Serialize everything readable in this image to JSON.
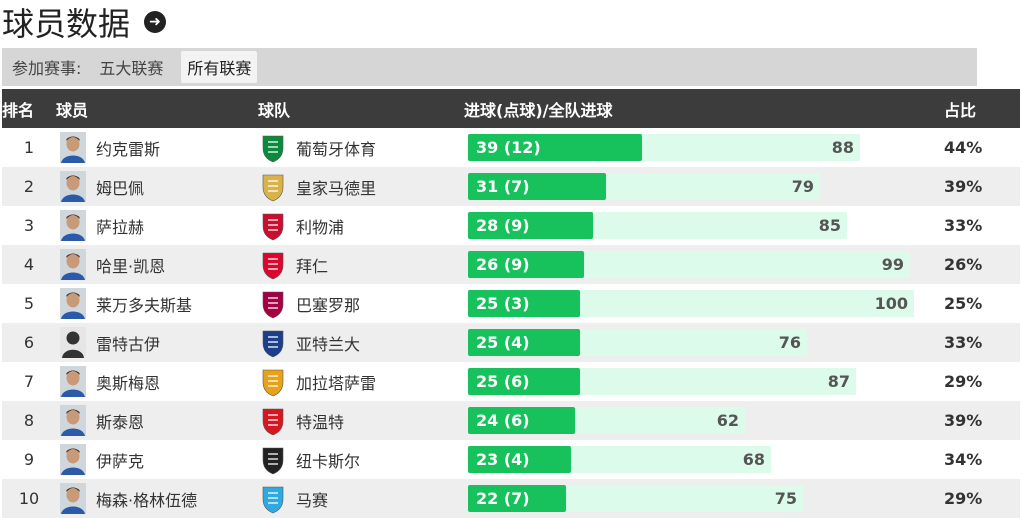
{
  "page": {
    "title": "球员数据"
  },
  "filter": {
    "label": "参加赛事:",
    "options": [
      {
        "label": "五大联赛",
        "active": false
      },
      {
        "label": "所有联赛",
        "active": true
      }
    ]
  },
  "table": {
    "headers": {
      "rank": "排名",
      "player": "球员",
      "team": "球队",
      "goals": "进球(点球)/全队进球",
      "pct": "占比"
    },
    "max_team_goals": 100,
    "rows": [
      {
        "rank": "1",
        "player": "约克雷斯",
        "team": "葡萄牙体育",
        "goals_text": "39 (12)",
        "goals": 39,
        "team_goals": 88,
        "team_goals_text": "88",
        "pct": "44%",
        "avatar": "player-photo-icon",
        "crest": "sporting-cp-crest-icon"
      },
      {
        "rank": "2",
        "player": "姆巴佩",
        "team": "皇家马德里",
        "goals_text": "31 (7)",
        "goals": 31,
        "team_goals": 79,
        "team_goals_text": "79",
        "pct": "39%",
        "avatar": "player-photo-icon",
        "crest": "real-madrid-crest-icon"
      },
      {
        "rank": "3",
        "player": "萨拉赫",
        "team": "利物浦",
        "goals_text": "28 (9)",
        "goals": 28,
        "team_goals": 85,
        "team_goals_text": "85",
        "pct": "33%",
        "avatar": "player-photo-icon",
        "crest": "liverpool-crest-icon"
      },
      {
        "rank": "4",
        "player": "哈里·凯恩",
        "team": "拜仁",
        "goals_text": "26 (9)",
        "goals": 26,
        "team_goals": 99,
        "team_goals_text": "99",
        "pct": "26%",
        "avatar": "player-photo-icon",
        "crest": "bayern-crest-icon"
      },
      {
        "rank": "5",
        "player": "莱万多夫斯基",
        "team": "巴塞罗那",
        "goals_text": "25 (3)",
        "goals": 25,
        "team_goals": 100,
        "team_goals_text": "100",
        "pct": "25%",
        "avatar": "player-photo-icon",
        "crest": "barcelona-crest-icon"
      },
      {
        "rank": "6",
        "player": "雷特古伊",
        "team": "亚特兰大",
        "goals_text": "25 (4)",
        "goals": 25,
        "team_goals": 76,
        "team_goals_text": "76",
        "pct": "33%",
        "avatar": "player-silhouette-icon",
        "crest": "atalanta-crest-icon"
      },
      {
        "rank": "7",
        "player": "奥斯梅恩",
        "team": "加拉塔萨雷",
        "goals_text": "25 (6)",
        "goals": 25,
        "team_goals": 87,
        "team_goals_text": "87",
        "pct": "29%",
        "avatar": "player-photo-icon",
        "crest": "galatasaray-crest-icon"
      },
      {
        "rank": "8",
        "player": "斯泰恩",
        "team": "特温特",
        "goals_text": "24 (6)",
        "goals": 24,
        "team_goals": 62,
        "team_goals_text": "62",
        "pct": "39%",
        "avatar": "player-photo-icon",
        "crest": "twente-crest-icon"
      },
      {
        "rank": "9",
        "player": "伊萨克",
        "team": "纽卡斯尔",
        "goals_text": "23 (4)",
        "goals": 23,
        "team_goals": 68,
        "team_goals_text": "68",
        "pct": "34%",
        "avatar": "player-photo-icon",
        "crest": "newcastle-crest-icon"
      },
      {
        "rank": "10",
        "player": "梅森·格林伍德",
        "team": "马赛",
        "goals_text": "22 (7)",
        "goals": 22,
        "team_goals": 75,
        "team_goals_text": "75",
        "pct": "29%",
        "avatar": "player-photo-icon",
        "crest": "marseille-crest-icon"
      }
    ]
  },
  "colors": {
    "goals_bar": "#17c15b",
    "team_bar": "#dcfbea",
    "header_bg": "#3c3c3c",
    "crests": {
      "sporting-cp-crest-icon": "#0a8a3c",
      "real-madrid-crest-icon": "#d9b34a",
      "liverpool-crest-icon": "#c8102e",
      "bayern-crest-icon": "#dc052d",
      "barcelona-crest-icon": "#a50044",
      "atalanta-crest-icon": "#1b3f8b",
      "galatasaray-crest-icon": "#e8a21a",
      "twente-crest-icon": "#d7171f",
      "newcastle-crest-icon": "#222222",
      "marseille-crest-icon": "#2fa9e1"
    }
  }
}
